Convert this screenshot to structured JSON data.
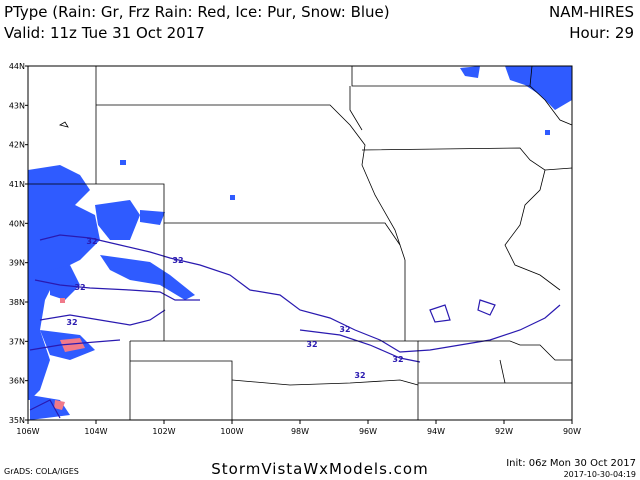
{
  "header": {
    "title": "PType (Rain: Gr, Frz Rain: Red, Ice: Pur, Snow: Blue)",
    "valid": "Valid: 11z Tue 31 Oct 2017",
    "model": "NAM-HIRES",
    "hour": "Hour: 29"
  },
  "map": {
    "lon_labels": [
      "106W",
      "104W",
      "102W",
      "100W",
      "98W",
      "96W",
      "94W",
      "92W",
      "90W"
    ],
    "lat_labels": [
      "44N",
      "43N",
      "42N",
      "41N",
      "40N",
      "39N",
      "38N",
      "37N",
      "36N",
      "35N"
    ],
    "contour_labels": [
      "32",
      "32",
      "32",
      "32",
      "32",
      "32",
      "32",
      "32"
    ]
  },
  "footer": {
    "site": "StormVistaWxModels.com",
    "credit": "GrADS: COLA/IGES",
    "init": "Init: 06z Mon 30 Oct 2017",
    "timestamp": "2017-10-30-04:19"
  }
}
